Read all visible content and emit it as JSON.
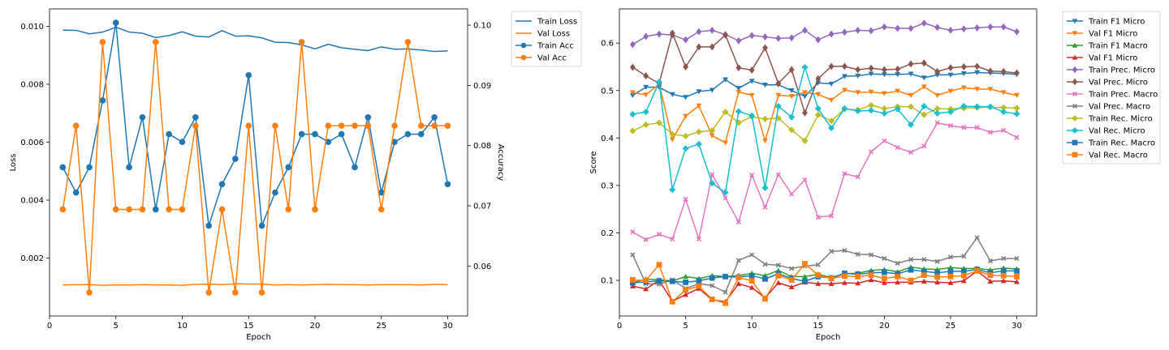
{
  "chart_data": [
    {
      "type": "line",
      "xlabel": "Epoch",
      "ylabel": "Loss",
      "y2label": "Accuracy",
      "xlim": [
        0,
        31.5
      ],
      "ylim": [
        0,
        0.0106
      ],
      "y2lim": [
        0.0517,
        0.1027
      ],
      "xticks": [
        0,
        5,
        10,
        15,
        20,
        25,
        30
      ],
      "yticks": [
        0.002,
        0.004,
        0.006,
        0.008,
        0.01
      ],
      "ytick_labels": [
        "0.002",
        "0.004",
        "0.006",
        "0.008",
        "0.010"
      ],
      "y2ticks": [
        0.06,
        0.07,
        0.08,
        0.09,
        0.1
      ],
      "y2tick_labels": [
        "0.06",
        "0.07",
        "0.08",
        "0.09",
        "0.10"
      ],
      "grid": false,
      "legend_position": "outside-right-top",
      "x": [
        1,
        2,
        3,
        4,
        5,
        6,
        7,
        8,
        9,
        10,
        11,
        12,
        13,
        14,
        15,
        16,
        17,
        18,
        19,
        20,
        21,
        22,
        23,
        24,
        25,
        26,
        27,
        28,
        29,
        30
      ],
      "series": [
        {
          "name": "Train Loss",
          "axis": "left",
          "color": "#1f77b4",
          "marker": "none",
          "values": [
            0.00987,
            0.00986,
            0.00974,
            0.0098,
            0.00997,
            0.0098,
            0.00976,
            0.00961,
            0.00968,
            0.00981,
            0.00966,
            0.00963,
            0.00985,
            0.00966,
            0.00967,
            0.0096,
            0.00945,
            0.00944,
            0.00936,
            0.00922,
            0.00938,
            0.00926,
            0.00921,
            0.00916,
            0.00929,
            0.00921,
            0.00922,
            0.00918,
            0.00913,
            0.00915
          ]
        },
        {
          "name": "Val Loss",
          "axis": "left",
          "color": "#ff7f0e",
          "marker": "none",
          "values": [
            0.00107,
            0.00108,
            0.00108,
            0.00106,
            0.00107,
            0.00107,
            0.00108,
            0.00107,
            0.00107,
            0.00106,
            0.00109,
            0.0011,
            0.00108,
            0.00111,
            0.0011,
            0.0011,
            0.00107,
            0.00108,
            0.00107,
            0.00108,
            0.00109,
            0.00108,
            0.00108,
            0.00107,
            0.00108,
            0.00108,
            0.00108,
            0.00107,
            0.00109,
            0.00108
          ]
        },
        {
          "name": "Train Acc",
          "axis": "right",
          "color": "#1f77b4",
          "marker": "circle",
          "values": [
            0.0764,
            0.0722,
            0.0764,
            0.0875,
            0.1004,
            0.0764,
            0.0847,
            0.0694,
            0.0819,
            0.0806,
            0.0847,
            0.0667,
            0.0736,
            0.0778,
            0.0917,
            0.0667,
            0.0722,
            0.0764,
            0.0819,
            0.0819,
            0.0806,
            0.0819,
            0.0764,
            0.0847,
            0.0722,
            0.0806,
            0.0819,
            0.0819,
            0.0847,
            0.0736
          ]
        },
        {
          "name": "Val Acc",
          "axis": "right",
          "color": "#ff7f0e",
          "marker": "circle",
          "values": [
            0.0694,
            0.0833,
            0.0556,
            0.0972,
            0.0694,
            0.0694,
            0.0694,
            0.0972,
            0.0694,
            0.0694,
            0.0833,
            0.0556,
            0.0694,
            0.0556,
            0.0833,
            0.0556,
            0.0833,
            0.0694,
            0.0972,
            0.0694,
            0.0833,
            0.0833,
            0.0833,
            0.0833,
            0.0694,
            0.0833,
            0.0972,
            0.0833,
            0.0833,
            0.0833
          ]
        }
      ]
    },
    {
      "type": "line",
      "xlabel": "Epoch",
      "ylabel": "Score",
      "xlim": [
        0,
        31.5
      ],
      "ylim": [
        0.025,
        0.672
      ],
      "xticks": [
        0,
        5,
        10,
        15,
        20,
        25,
        30
      ],
      "yticks": [
        0.1,
        0.2,
        0.3,
        0.4,
        0.5,
        0.6
      ],
      "ytick_labels": [
        "0.1",
        "0.2",
        "0.3",
        "0.4",
        "0.5",
        "0.6"
      ],
      "grid": false,
      "legend_position": "outside-right-top",
      "x": [
        1,
        2,
        3,
        4,
        5,
        6,
        7,
        8,
        9,
        10,
        11,
        12,
        13,
        14,
        15,
        16,
        17,
        18,
        19,
        20,
        21,
        22,
        23,
        24,
        25,
        26,
        27,
        28,
        29,
        30
      ],
      "series": [
        {
          "name": "Train F1 Micro",
          "color": "#1f77b4",
          "marker": "tri-down",
          "values": [
            0.49,
            0.507,
            0.507,
            0.492,
            0.486,
            0.498,
            0.501,
            0.523,
            0.505,
            0.52,
            0.512,
            0.512,
            0.5,
            0.488,
            0.516,
            0.514,
            0.53,
            0.531,
            0.535,
            0.534,
            0.534,
            0.535,
            0.527,
            0.533,
            0.533,
            0.536,
            0.538,
            0.537,
            0.536,
            0.534
          ]
        },
        {
          "name": "Val F1 Micro",
          "color": "#ff7f0e",
          "marker": "tri-down",
          "values": [
            0.496,
            0.491,
            0.514,
            0.397,
            0.446,
            0.468,
            0.405,
            0.39,
            0.497,
            0.49,
            0.394,
            0.49,
            0.488,
            0.496,
            0.492,
            0.48,
            0.501,
            0.496,
            0.497,
            0.494,
            0.499,
            0.49,
            0.508,
            0.49,
            0.499,
            0.506,
            0.503,
            0.503,
            0.496,
            0.49
          ]
        },
        {
          "name": "Train F1 Macro",
          "color": "#2ca02c",
          "marker": "tri-up",
          "values": [
            0.095,
            0.103,
            0.101,
            0.099,
            0.108,
            0.104,
            0.11,
            0.108,
            0.11,
            0.115,
            0.11,
            0.121,
            0.108,
            0.108,
            0.113,
            0.106,
            0.114,
            0.115,
            0.121,
            0.123,
            0.118,
            0.128,
            0.124,
            0.123,
            0.127,
            0.125,
            0.125,
            0.122,
            0.126,
            0.124
          ]
        },
        {
          "name": "Val F1 Micro",
          "color": "#d62728",
          "marker": "tri-up",
          "values": [
            0.088,
            0.082,
            0.1,
            0.056,
            0.07,
            0.083,
            0.059,
            0.055,
            0.093,
            0.085,
            0.063,
            0.095,
            0.086,
            0.096,
            0.093,
            0.093,
            0.095,
            0.094,
            0.101,
            0.095,
            0.096,
            0.096,
            0.098,
            0.096,
            0.095,
            0.099,
            0.12,
            0.098,
            0.099,
            0.097
          ]
        },
        {
          "name": "Train Prec. Micro",
          "color": "#9467bd",
          "marker": "diamond",
          "values": [
            0.597,
            0.614,
            0.619,
            0.617,
            0.607,
            0.624,
            0.627,
            0.618,
            0.605,
            0.616,
            0.613,
            0.61,
            0.611,
            0.627,
            0.607,
            0.619,
            0.623,
            0.627,
            0.626,
            0.634,
            0.631,
            0.631,
            0.642,
            0.633,
            0.627,
            0.63,
            0.632,
            0.634,
            0.634,
            0.624
          ]
        },
        {
          "name": "Val Prec. Micro",
          "color": "#8c564b",
          "marker": "diamond",
          "values": [
            0.549,
            0.531,
            0.515,
            0.621,
            0.55,
            0.592,
            0.592,
            0.617,
            0.548,
            0.543,
            0.59,
            0.515,
            0.544,
            0.453,
            0.525,
            0.551,
            0.551,
            0.544,
            0.547,
            0.544,
            0.545,
            0.556,
            0.558,
            0.54,
            0.548,
            0.55,
            0.551,
            0.541,
            0.54,
            0.537
          ]
        },
        {
          "name": "Train Prec. Macro",
          "color": "#e377c2",
          "marker": "x",
          "values": [
            0.202,
            0.186,
            0.197,
            0.187,
            0.271,
            0.187,
            0.323,
            0.274,
            0.223,
            0.322,
            0.254,
            0.323,
            0.282,
            0.312,
            0.233,
            0.236,
            0.325,
            0.318,
            0.371,
            0.394,
            0.38,
            0.37,
            0.383,
            0.432,
            0.426,
            0.422,
            0.422,
            0.412,
            0.416,
            0.401
          ]
        },
        {
          "name": "Val Prec. Macro",
          "color": "#7f7f7f",
          "marker": "x",
          "values": [
            0.154,
            0.093,
            0.092,
            0.101,
            0.083,
            0.093,
            0.089,
            0.075,
            0.142,
            0.154,
            0.134,
            0.132,
            0.125,
            0.13,
            0.133,
            0.161,
            0.163,
            0.155,
            0.154,
            0.146,
            0.136,
            0.144,
            0.144,
            0.14,
            0.149,
            0.151,
            0.19,
            0.141,
            0.146,
            0.146
          ]
        },
        {
          "name": "Train Rec. Micro",
          "color": "#bcbd22",
          "marker": "plus",
          "values": [
            0.415,
            0.428,
            0.432,
            0.408,
            0.404,
            0.413,
            0.416,
            0.455,
            0.432,
            0.445,
            0.44,
            0.442,
            0.417,
            0.394,
            0.449,
            0.436,
            0.461,
            0.459,
            0.469,
            0.462,
            0.466,
            0.466,
            0.449,
            0.462,
            0.461,
            0.463,
            0.464,
            0.465,
            0.464,
            0.463
          ]
        },
        {
          "name": "Val Rec. Micro",
          "color": "#17becf",
          "marker": "plus",
          "values": [
            0.45,
            0.455,
            0.518,
            0.291,
            0.378,
            0.387,
            0.305,
            0.285,
            0.456,
            0.447,
            0.295,
            0.467,
            0.444,
            0.549,
            0.462,
            0.421,
            0.462,
            0.457,
            0.458,
            0.452,
            0.461,
            0.428,
            0.467,
            0.452,
            0.455,
            0.467,
            0.466,
            0.466,
            0.455,
            0.451
          ]
        },
        {
          "name": "Train Rec. Macro",
          "color": "#1f77b4",
          "marker": "square",
          "values": [
            0.095,
            0.097,
            0.099,
            0.098,
            0.096,
            0.099,
            0.105,
            0.108,
            0.107,
            0.11,
            0.103,
            0.114,
            0.104,
            0.098,
            0.108,
            0.105,
            0.115,
            0.113,
            0.116,
            0.117,
            0.114,
            0.122,
            0.119,
            0.116,
            0.119,
            0.119,
            0.123,
            0.116,
            0.12,
            0.12
          ]
        },
        {
          "name": "Val Rec. Macro",
          "color": "#ff7f0e",
          "marker": "square",
          "values": [
            0.101,
            0.1,
            0.133,
            0.055,
            0.08,
            0.088,
            0.06,
            0.052,
            0.106,
            0.099,
            0.061,
            0.11,
            0.101,
            0.135,
            0.111,
            0.104,
            0.109,
            0.108,
            0.111,
            0.104,
            0.108,
            0.1,
            0.111,
            0.107,
            0.108,
            0.11,
            0.12,
            0.111,
            0.11,
            0.108
          ]
        }
      ]
    }
  ]
}
